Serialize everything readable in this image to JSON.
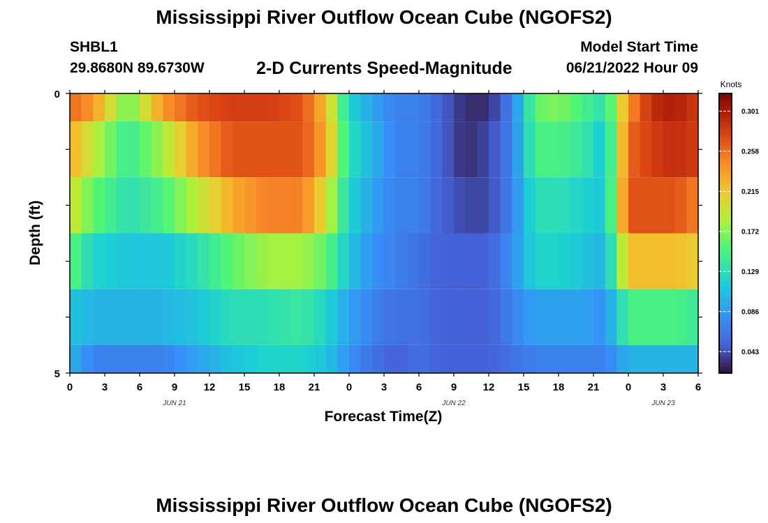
{
  "header": {
    "title": "Mississippi River Outflow Ocean Cube (NGOFS2)",
    "station_id": "SHBL1",
    "station_coords": "29.8680N  89.6730W",
    "plot_title": "2-D Currents Speed-Magnitude",
    "model_start_label": "Model Start Time",
    "model_start_value": "06/21/2022 Hour 09"
  },
  "footer": {
    "next_title": "Mississippi River Outflow Ocean Cube (NGOFS2)"
  },
  "chart_data": {
    "type": "heatmap",
    "xlabel": "Forecast Time(Z)",
    "ylabel": "Depth (ft)",
    "ylim": [
      0,
      5
    ],
    "y_tick_labels": [
      "0",
      "5"
    ],
    "x_tick_labels": [
      "0",
      "3",
      "6",
      "9",
      "12",
      "15",
      "18",
      "21",
      "0",
      "3",
      "6",
      "9",
      "12",
      "15",
      "18",
      "21",
      "0",
      "3",
      "6"
    ],
    "date_labels": [
      "JUN 21",
      "JUN 22",
      "JUN 23"
    ],
    "colorbar_title": "Knots",
    "colorbar_ticks": [
      "0.301",
      "0.258",
      "0.215",
      "0.172",
      "0.129",
      "0.086",
      "0.043"
    ],
    "color_range": [
      0.02,
      0.32
    ],
    "row_depth_bounds_ft": [
      [
        0,
        0.5
      ],
      [
        0.5,
        1.5
      ],
      [
        1.5,
        2.5
      ],
      [
        2.5,
        3.5
      ],
      [
        3.5,
        4.5
      ],
      [
        4.5,
        5
      ]
    ],
    "time_anchor_hours": [
      0,
      2,
      5,
      8,
      11,
      14,
      17,
      20,
      22,
      24,
      26,
      28,
      30,
      32,
      34,
      36,
      38,
      40,
      42,
      44,
      46,
      48,
      50,
      52,
      54
    ],
    "rows": [
      [
        0.26,
        0.24,
        0.16,
        0.24,
        0.27,
        0.28,
        0.28,
        0.27,
        0.22,
        0.12,
        0.09,
        0.07,
        0.07,
        0.05,
        0.03,
        0.03,
        0.07,
        0.16,
        0.17,
        0.15,
        0.13,
        0.24,
        0.29,
        0.3,
        0.28
      ],
      [
        0.23,
        0.19,
        0.14,
        0.18,
        0.24,
        0.27,
        0.27,
        0.27,
        0.23,
        0.13,
        0.1,
        0.07,
        0.07,
        0.05,
        0.03,
        0.04,
        0.07,
        0.15,
        0.15,
        0.14,
        0.11,
        0.26,
        0.28,
        0.29,
        0.28
      ],
      [
        0.2,
        0.16,
        0.13,
        0.15,
        0.19,
        0.23,
        0.25,
        0.25,
        0.2,
        0.12,
        0.09,
        0.07,
        0.07,
        0.05,
        0.04,
        0.04,
        0.07,
        0.13,
        0.13,
        0.12,
        0.11,
        0.27,
        0.27,
        0.27,
        0.25
      ],
      [
        0.16,
        0.12,
        0.11,
        0.11,
        0.13,
        0.16,
        0.18,
        0.18,
        0.16,
        0.11,
        0.08,
        0.07,
        0.06,
        0.05,
        0.05,
        0.05,
        0.08,
        0.12,
        0.12,
        0.11,
        0.1,
        0.22,
        0.22,
        0.22,
        0.21
      ],
      [
        0.11,
        0.1,
        0.1,
        0.1,
        0.11,
        0.13,
        0.13,
        0.14,
        0.12,
        0.09,
        0.07,
        0.06,
        0.06,
        0.05,
        0.05,
        0.05,
        0.07,
        0.09,
        0.09,
        0.09,
        0.08,
        0.15,
        0.15,
        0.15,
        0.14
      ],
      [
        0.1,
        0.07,
        0.07,
        0.07,
        0.09,
        0.11,
        0.12,
        0.12,
        0.11,
        0.08,
        0.06,
        0.05,
        0.06,
        0.05,
        0.05,
        0.05,
        0.06,
        0.07,
        0.07,
        0.07,
        0.07,
        0.1,
        0.1,
        0.1,
        0.1
      ]
    ]
  }
}
